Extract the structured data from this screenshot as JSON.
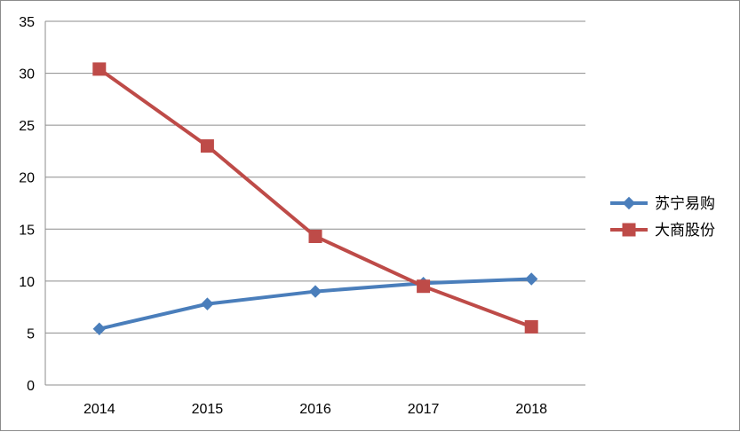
{
  "chart_data": {
    "type": "line",
    "categories": [
      "2014",
      "2015",
      "2016",
      "2017",
      "2018"
    ],
    "y_ticks": [
      "0",
      "5",
      "10",
      "15",
      "20",
      "25",
      "30",
      "35"
    ],
    "ylim": [
      0,
      35
    ],
    "grid": true,
    "legend_position": "right",
    "series": [
      {
        "name": "苏宁易购",
        "values": [
          5.4,
          7.8,
          9.0,
          9.8,
          10.2
        ],
        "color": "#4a7ebb",
        "marker": "diamond"
      },
      {
        "name": "大商股份",
        "values": [
          30.4,
          23.0,
          14.3,
          9.5,
          5.6
        ],
        "color": "#be4b48",
        "marker": "square"
      }
    ]
  }
}
